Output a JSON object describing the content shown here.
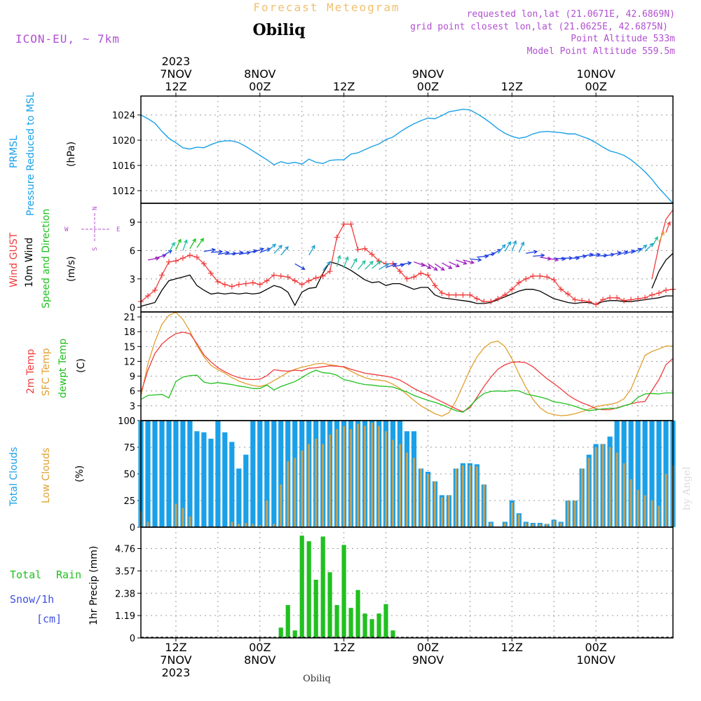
{
  "header": {
    "super_title": "Forecast Meteogram",
    "location": "Obiliq",
    "model": "ICON-EU, ~ 7km",
    "requested": "requested lon,lat (21.0671E, 42.6869N)",
    "grid_point": "grid point closest lon,lat (21.0625E, 42.6875N)",
    "point_altitude": "Point Altitude 533m",
    "model_altitude": "Model Point Altitude 559.5m",
    "watermark": "by Angel",
    "footer_location": "Obiliq"
  },
  "time_axis": {
    "top_labels": [
      {
        "h": 12,
        "lines": [
          "2023",
          "7NOV",
          "12Z"
        ]
      },
      {
        "h": 24,
        "lines": [
          "8NOV",
          "00Z"
        ]
      },
      {
        "h": 36,
        "lines": [
          "12Z"
        ]
      },
      {
        "h": 48,
        "lines": [
          "9NOV",
          "00Z"
        ]
      },
      {
        "h": 60,
        "lines": [
          "12Z"
        ]
      },
      {
        "h": 72,
        "lines": [
          "10NOV",
          "00Z"
        ]
      }
    ],
    "bottom_labels": [
      {
        "h": 12,
        "lines": [
          "12Z",
          "7NOV",
          "2023"
        ]
      },
      {
        "h": 24,
        "lines": [
          "00Z",
          "8NOV"
        ]
      },
      {
        "h": 36,
        "lines": [
          "12Z"
        ]
      },
      {
        "h": 48,
        "lines": [
          "00Z",
          "9NOV"
        ]
      },
      {
        "h": 60,
        "lines": [
          "12Z"
        ]
      },
      {
        "h": 72,
        "lines": [
          "00Z",
          "10NOV"
        ]
      }
    ],
    "x_range_hours": [
      7,
      83
    ]
  },
  "panels": {
    "pressure": {
      "label1": "PRMSL",
      "label2": "Pressure Reduced to MSL",
      "unit": "(hPa)",
      "ticks": [
        "1012",
        "1016",
        "1020",
        "1024"
      ]
    },
    "wind": {
      "label1": "Wind GUST",
      "label2": "10m Wind",
      "label3": "Speed and Direction",
      "unit": "(m/s)",
      "ticks": [
        "0",
        "3",
        "6",
        "9"
      ],
      "compass_n": "N",
      "compass_w": "W",
      "compass_e": "E",
      "compass_s": "S"
    },
    "temp": {
      "label1": "2m Temp",
      "label2": "SFC Temp",
      "label3": "dewpt Temp",
      "unit": "(C)",
      "ticks": [
        "0",
        "3",
        "6",
        "9",
        "12",
        "15",
        "18",
        "21"
      ]
    },
    "clouds": {
      "label1": "Total Clouds",
      "label2": "Low Clouds",
      "unit": "(%)",
      "ticks": [
        "0",
        "25",
        "50",
        "75",
        "100"
      ]
    },
    "precip": {
      "label1": "Total",
      "label1b": "Rain",
      "label2": "Snow/1h",
      "label3": "[cm]",
      "axis_label": "1hr Precip (mm)",
      "ticks": [
        "0",
        "1.19",
        "2.38",
        "3.57",
        "4.76"
      ]
    }
  },
  "colors": {
    "pressure": "#1aa0e8",
    "gust": "#f03c3c",
    "wind": "#000000",
    "temp2m": "#f03c3c",
    "sfc": "#e0a030",
    "dewpt": "#20c020",
    "total_clouds": "#1aa0e8",
    "low_clouds": "#c8a050",
    "rain": "#20c020",
    "header_purple": "#b050d0",
    "header_orange": "#f0c070"
  },
  "chart_data": [
    {
      "type": "line",
      "name": "PRMSL",
      "ylabel": "hPa",
      "ylim": [
        1010,
        1027
      ],
      "x": [
        7,
        8,
        9,
        10,
        11,
        12,
        13,
        14,
        15,
        16,
        17,
        18,
        19,
        20,
        21,
        22,
        23,
        24,
        25,
        26,
        27,
        28,
        29,
        30,
        31,
        32,
        33,
        34,
        35,
        36,
        37,
        38,
        39,
        40,
        41,
        42,
        43,
        44,
        45,
        46,
        47,
        48,
        49,
        50,
        51,
        52,
        53,
        54,
        55,
        56,
        57,
        58,
        59,
        60,
        61,
        62,
        63,
        64,
        65,
        66,
        67,
        68,
        69,
        70,
        71,
        72,
        73,
        74,
        75,
        76,
        77,
        78,
        79,
        80,
        81,
        82,
        83
      ],
      "y": [
        1024,
        1023.4,
        1022.7,
        1021.4,
        1020.3,
        1019.6,
        1018.8,
        1018.6,
        1018.9,
        1018.8,
        1019.3,
        1019.7,
        1019.9,
        1019.9,
        1019.6,
        1019,
        1018.3,
        1017.6,
        1016.9,
        1016.1,
        1016.6,
        1016.3,
        1016.5,
        1016.2,
        1017,
        1016.5,
        1016.3,
        1016.8,
        1016.9,
        1016.9,
        1017.8,
        1018,
        1018.5,
        1019,
        1019.4,
        1020.1,
        1020.5,
        1021.3,
        1022,
        1022.6,
        1023.1,
        1023.5,
        1023.4,
        1023.9,
        1024.5,
        1024.7,
        1024.9,
        1024.8,
        1024.2,
        1023.5,
        1022.7,
        1021.8,
        1021.1,
        1020.6,
        1020.3,
        1020.5,
        1021,
        1021.3,
        1021.4,
        1021.3,
        1021.2,
        1021,
        1021,
        1020.6,
        1020.2,
        1019.6,
        1018.9,
        1018.3,
        1018,
        1017.6,
        1016.9,
        1016,
        1015,
        1013.8,
        1012.4,
        1011.2,
        1010
      ]
    },
    {
      "type": "line",
      "name": "Wind GUST / 10m Wind",
      "ylabel": "m/s",
      "ylim": [
        -0.5,
        11
      ],
      "x": [
        7,
        8,
        9,
        10,
        11,
        12,
        13,
        14,
        15,
        16,
        17,
        18,
        19,
        20,
        21,
        22,
        23,
        24,
        25,
        26,
        27,
        28,
        29,
        30,
        31,
        32,
        33,
        34,
        35,
        36,
        37,
        38,
        39,
        40,
        41,
        42,
        43,
        44,
        45,
        46,
        47,
        48,
        49,
        50,
        51,
        52,
        53,
        54,
        55,
        56,
        57,
        58,
        59,
        60,
        61,
        62,
        63,
        64,
        65,
        66,
        67,
        68,
        69,
        70,
        71,
        72,
        73,
        74,
        75,
        76,
        77,
        78,
        79,
        80,
        81,
        82,
        83
      ],
      "gust": [
        0.6,
        1.2,
        1.8,
        3.4,
        4.8,
        4.9,
        5.2,
        5.5,
        5.3,
        4.6,
        3.6,
        2.7,
        2.4,
        2.2,
        2.4,
        2.5,
        2.6,
        2.4,
        2.8,
        3.4,
        3.3,
        3.2,
        2.8,
        2.4,
        2.8,
        3.1,
        3.3,
        3.8,
        7.4,
        8.8,
        8.8,
        6.1,
        6.2,
        5.6,
        4.9,
        4.6,
        4.6,
        3.8,
        3.0,
        3.2,
        3.6,
        3.4,
        2.3,
        1.5,
        1.3,
        1.3,
        1.3,
        1.3,
        0.9,
        0.6,
        0.6,
        0.9,
        1.3,
        1.9,
        2.6,
        3.0,
        3.3,
        3.3,
        3.2,
        2.9,
        1.9,
        1.4,
        0.8,
        0.7,
        0.6,
        0.3,
        0.8,
        1.0,
        1.0,
        0.7,
        0.8,
        0.9,
        1.0,
        1.3,
        1.5,
        1.8,
        1.9
      ],
      "wind": [
        0.1,
        0.3,
        0.5,
        1.8,
        2.8,
        3.0,
        3.2,
        3.4,
        2.3,
        1.8,
        1.4,
        1.5,
        1.4,
        1.5,
        1.4,
        1.5,
        1.4,
        1.5,
        1.9,
        2.3,
        2.1,
        1.6,
        0.2,
        1.6,
        2.0,
        2.1,
        3.6,
        4.8,
        4.6,
        4.3,
        3.9,
        3.4,
        2.9,
        2.6,
        2.7,
        2.3,
        2.5,
        2.5,
        2.2,
        1.9,
        2.1,
        2.1,
        1.3,
        1.0,
        0.9,
        0.8,
        0.7,
        0.6,
        0.4,
        0.4,
        0.5,
        0.8,
        1.1,
        1.4,
        1.7,
        1.9,
        1.9,
        1.7,
        1.3,
        0.9,
        0.7,
        0.5,
        0.4,
        0.5,
        0.5,
        0.3,
        0.6,
        0.7,
        0.7,
        0.6,
        0.6,
        0.7,
        0.8,
        0.9,
        1.0,
        1.2,
        1.2
      ],
      "tail_x": [
        80,
        81,
        82,
        83
      ],
      "tail_gust": [
        3.0,
        6.5,
        9.3,
        10.3
      ],
      "tail_wind": [
        2.0,
        3.8,
        5.0,
        5.7
      ]
    },
    {
      "type": "line",
      "name": "Temperatures",
      "ylabel": "C",
      "ylim": [
        0,
        22
      ],
      "x": [
        7,
        8,
        9,
        10,
        11,
        12,
        13,
        14,
        15,
        16,
        17,
        18,
        19,
        20,
        21,
        22,
        23,
        24,
        25,
        26,
        27,
        28,
        29,
        30,
        31,
        32,
        33,
        34,
        35,
        36,
        37,
        38,
        39,
        40,
        41,
        42,
        43,
        44,
        45,
        46,
        47,
        48,
        49,
        50,
        51,
        52,
        53,
        54,
        55,
        56,
        57,
        58,
        59,
        60,
        61,
        62,
        63,
        64,
        65,
        66,
        67,
        68,
        69,
        70,
        71,
        72,
        73,
        74,
        75,
        76,
        77,
        78,
        79,
        80,
        81,
        82,
        83
      ],
      "t2m": [
        5.6,
        10.2,
        13.6,
        15.5,
        16.7,
        17.6,
        17.9,
        17.6,
        15.6,
        13.3,
        11.9,
        10.7,
        9.9,
        9.2,
        8.7,
        8.4,
        8.3,
        8.4,
        9.1,
        10.3,
        10.1,
        10.0,
        10.2,
        10.1,
        10.6,
        10.7,
        10.9,
        11.1,
        11.0,
        10.9,
        10.4,
        10.0,
        9.6,
        9.4,
        9.2,
        9.0,
        8.7,
        8.2,
        7.4,
        6.5,
        5.8,
        5.2,
        4.5,
        3.8,
        3.1,
        2.4,
        1.8,
        2.6,
        4.7,
        6.9,
        8.8,
        10.4,
        11.3,
        11.8,
        11.9,
        11.7,
        10.9,
        9.7,
        8.5,
        7.5,
        6.4,
        5.2,
        4.3,
        3.6,
        3.1,
        2.4,
        2.2,
        2.2,
        2.6,
        3.0,
        3.4,
        3.7,
        3.9,
        6.1,
        8.3,
        11.3,
        12.6
      ],
      "sfc": [
        4.9,
        11.5,
        16.0,
        19.5,
        21.3,
        21.9,
        20.5,
        18.1,
        15.2,
        12.9,
        11.2,
        10.3,
        9.6,
        8.7,
        8.0,
        7.5,
        7.1,
        6.9,
        7.3,
        8.1,
        8.9,
        9.8,
        10.4,
        10.8,
        11.1,
        11.5,
        11.6,
        11.3,
        11.1,
        10.8,
        10.0,
        9.3,
        8.7,
        8.3,
        8.2,
        8.0,
        7.4,
        6.5,
        5.3,
        4.1,
        3.0,
        2.2,
        1.4,
        0.9,
        1.6,
        4.0,
        7.1,
        10.3,
        12.9,
        14.7,
        15.8,
        16.1,
        15.0,
        12.5,
        9.5,
        6.7,
        4.3,
        2.6,
        1.6,
        1.2,
        1.0,
        1.1,
        1.4,
        1.8,
        2.3,
        2.8,
        3.1,
        3.3,
        3.6,
        4.4,
        6.4,
        9.8,
        13.2,
        14.0,
        14.5,
        15.1,
        15.1
      ],
      "dewpt": [
        4.3,
        5.1,
        5.2,
        5.3,
        4.6,
        7.9,
        8.8,
        9.1,
        9.2,
        7.8,
        7.5,
        7.7,
        7.5,
        7.3,
        7.0,
        6.8,
        6.5,
        6.5,
        7.2,
        6.2,
        6.9,
        7.4,
        7.9,
        8.7,
        9.6,
        10.2,
        9.7,
        9.6,
        9.2,
        8.3,
        8.0,
        7.6,
        7.3,
        7.2,
        7.0,
        6.9,
        6.8,
        6.3,
        5.8,
        5.1,
        4.6,
        4.1,
        3.7,
        3.2,
        2.6,
        2.0,
        1.7,
        2.9,
        4.4,
        5.5,
        5.9,
        6.0,
        5.9,
        6.1,
        6.0,
        5.4,
        5.1,
        4.8,
        4.4,
        3.8,
        3.6,
        3.3,
        2.9,
        2.4,
        2.0,
        2.2,
        2.4,
        2.5,
        2.5,
        3.0,
        3.4,
        4.7,
        5.4,
        5.5,
        5.4,
        5.6,
        5.6
      ]
    },
    {
      "type": "bar",
      "name": "Clouds",
      "ylabel": "%",
      "ylim": [
        0,
        100
      ],
      "x": [
        7,
        8,
        9,
        10,
        11,
        12,
        13,
        14,
        15,
        16,
        17,
        18,
        19,
        20,
        21,
        22,
        23,
        24,
        25,
        26,
        27,
        28,
        29,
        30,
        31,
        32,
        33,
        34,
        35,
        36,
        37,
        38,
        39,
        40,
        41,
        42,
        43,
        44,
        45,
        46,
        47,
        48,
        49,
        50,
        51,
        52,
        53,
        54,
        55,
        56,
        57,
        58,
        59,
        60,
        61,
        62,
        63,
        64,
        65,
        66,
        67,
        68,
        69,
        70,
        71,
        72,
        73,
        74,
        75,
        76,
        77,
        78,
        79,
        80,
        81,
        82,
        83
      ],
      "total": [
        100,
        100,
        100,
        100,
        100,
        100,
        100,
        100,
        90,
        89,
        83,
        100,
        89,
        80,
        55,
        68,
        100,
        100,
        100,
        100,
        100,
        100,
        100,
        100,
        100,
        100,
        100,
        100,
        100,
        100,
        100,
        100,
        100,
        100,
        100,
        100,
        100,
        100,
        90,
        90,
        55,
        52,
        43,
        30,
        30,
        55,
        60,
        60,
        59,
        40,
        5,
        0,
        5,
        25,
        13,
        5,
        4,
        4,
        3,
        7,
        5,
        25,
        25,
        55,
        68,
        78,
        78,
        85,
        100,
        100,
        100,
        100,
        100,
        100,
        100,
        100,
        100
      ],
      "low": [
        15,
        5,
        0,
        0,
        0,
        22,
        18,
        10,
        0,
        0,
        0,
        0,
        0,
        5,
        3,
        4,
        3,
        2,
        25,
        3,
        40,
        62,
        65,
        72,
        78,
        83,
        78,
        87,
        92,
        95,
        92,
        97,
        95,
        98,
        95,
        90,
        82,
        78,
        70,
        65,
        55,
        50,
        43,
        28,
        30,
        55,
        58,
        58,
        57,
        40,
        4,
        0,
        4,
        23,
        12,
        4,
        3,
        3,
        3,
        6,
        4,
        25,
        25,
        55,
        65,
        75,
        78,
        75,
        70,
        60,
        45,
        35,
        30,
        25,
        20,
        50,
        58
      ]
    },
    {
      "type": "bar",
      "name": "1hr Precip",
      "ylabel": "1hr Precip (mm)",
      "ylim": [
        0,
        5.9
      ],
      "x": [
        27,
        28,
        29,
        30,
        31,
        32,
        33,
        34,
        35,
        36,
        37,
        38,
        39,
        40,
        41,
        42,
        43,
        44,
        45
      ],
      "values": [
        0.55,
        1.75,
        0.4,
        5.45,
        5.15,
        3.1,
        5.4,
        3.5,
        1.75,
        4.95,
        1.6,
        2.55,
        1.3,
        1,
        1.3,
        1.8,
        0.4,
        0,
        0
      ]
    }
  ]
}
